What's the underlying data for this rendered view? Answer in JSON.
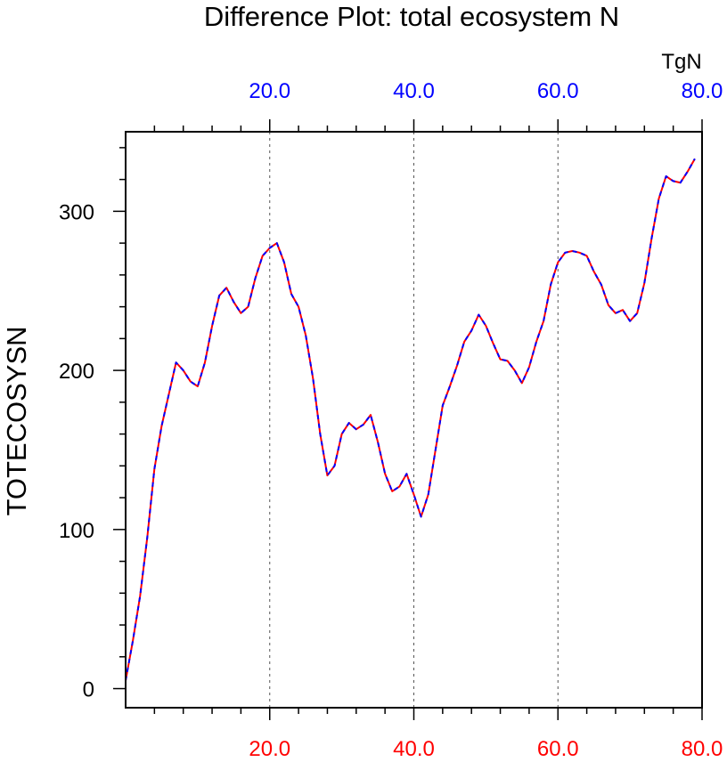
{
  "chart_data": {
    "type": "line",
    "title": "Difference Plot: total ecosystem N",
    "units_label": "TgN",
    "ylabel": "TOTECOSYSN",
    "xlim": [
      0,
      80
    ],
    "ylim": [
      -12,
      350
    ],
    "grid": "vertical dashed at major x ticks",
    "x_ticks": [
      20,
      40,
      60,
      80
    ],
    "x_tick_labels_bottom": [
      "20.0",
      "40.0",
      "60.0",
      "80.0"
    ],
    "x_tick_labels_top": [
      "20.0",
      "40.0",
      "60.0",
      "80.0"
    ],
    "y_ticks": [
      0,
      100,
      200,
      300
    ],
    "y_tick_labels": [
      "0",
      "100",
      "200",
      "300"
    ],
    "colors": {
      "bottom_axis_labels": "#ff0000",
      "top_axis_labels": "#0000ff",
      "series_a": "#ff0000",
      "series_b": "#0000ff"
    },
    "series": [
      {
        "values": [
          [
            0,
            5
          ],
          [
            1,
            30
          ],
          [
            2,
            58
          ],
          [
            3,
            95
          ],
          [
            4,
            138
          ],
          [
            5,
            165
          ],
          [
            6,
            185
          ],
          [
            7,
            205
          ],
          [
            8,
            200
          ],
          [
            9,
            193
          ],
          [
            10,
            190
          ],
          [
            11,
            205
          ],
          [
            12,
            228
          ],
          [
            13,
            247
          ],
          [
            14,
            252
          ],
          [
            15,
            243
          ],
          [
            16,
            236
          ],
          [
            17,
            240
          ],
          [
            18,
            258
          ],
          [
            19,
            272
          ],
          [
            20,
            277
          ],
          [
            21,
            280
          ],
          [
            22,
            268
          ],
          [
            23,
            248
          ],
          [
            24,
            240
          ],
          [
            25,
            222
          ],
          [
            26,
            195
          ],
          [
            27,
            160
          ],
          [
            28,
            134
          ],
          [
            29,
            140
          ],
          [
            30,
            160
          ],
          [
            31,
            167
          ],
          [
            32,
            163
          ],
          [
            33,
            166
          ],
          [
            34,
            172
          ],
          [
            35,
            155
          ],
          [
            36,
            135
          ],
          [
            37,
            124
          ],
          [
            38,
            127
          ],
          [
            39,
            135
          ],
          [
            40,
            122
          ],
          [
            41,
            108
          ],
          [
            42,
            122
          ],
          [
            43,
            150
          ],
          [
            44,
            178
          ],
          [
            45,
            190
          ],
          [
            46,
            203
          ],
          [
            47,
            218
          ],
          [
            48,
            225
          ],
          [
            49,
            235
          ],
          [
            50,
            228
          ],
          [
            51,
            217
          ],
          [
            52,
            207
          ],
          [
            53,
            206
          ],
          [
            54,
            200
          ],
          [
            55,
            192
          ],
          [
            56,
            202
          ],
          [
            57,
            218
          ],
          [
            58,
            231
          ],
          [
            59,
            254
          ],
          [
            60,
            268
          ],
          [
            61,
            274
          ],
          [
            62,
            275
          ],
          [
            63,
            274
          ],
          [
            64,
            272
          ],
          [
            65,
            262
          ],
          [
            66,
            254
          ],
          [
            67,
            241
          ],
          [
            68,
            236
          ],
          [
            69,
            238
          ],
          [
            70,
            231
          ],
          [
            71,
            236
          ],
          [
            72,
            255
          ],
          [
            73,
            283
          ],
          [
            74,
            308
          ],
          [
            75,
            322
          ],
          [
            76,
            319
          ],
          [
            77,
            318
          ],
          [
            78,
            325
          ],
          [
            79,
            333
          ]
        ]
      }
    ]
  }
}
